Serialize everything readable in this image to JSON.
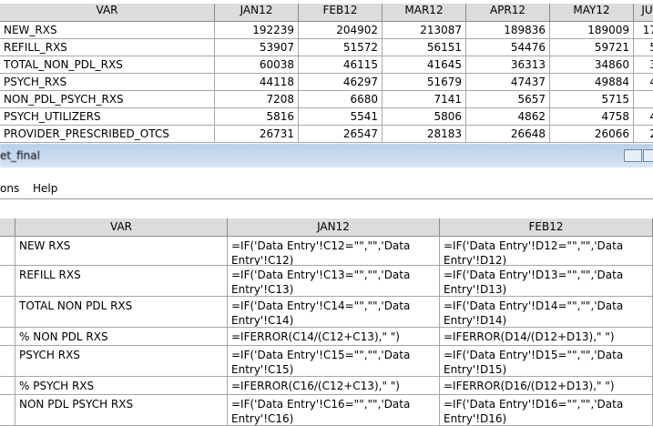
{
  "top_window": {
    "table": {
      "header": [
        "VAR",
        "JAN12",
        "FEB12",
        "MAR12",
        "APR12",
        "MAY12",
        "JU"
      ],
      "rows": [
        [
          "NEW_RXS",
          192239,
          204902,
          213087,
          189836,
          189009,
          "17"
        ],
        [
          "REFILL_RXS",
          53907,
          51572,
          56151,
          54476,
          59721,
          "5"
        ],
        [
          "TOTAL_NON_PDL_RXS",
          60038,
          46115,
          41645,
          36313,
          34860,
          "3"
        ],
        [
          "PSYCH_RXS",
          44118,
          46297,
          51679,
          47437,
          49884,
          "4"
        ],
        [
          "NON_PDL_PSYCH_RXS",
          7208,
          6680,
          7141,
          5657,
          5715,
          null
        ],
        [
          "PSYCH_UTILIZERS",
          5816,
          5541,
          5806,
          4862,
          4758,
          "4"
        ],
        [
          "PROVIDER_PRESCRIBED_OTCS",
          26731,
          26547,
          28183,
          26648,
          26066,
          "2"
        ]
      ]
    }
  },
  "bottom_window": {
    "title": "et_final",
    "menu": [
      "ons",
      "Help"
    ],
    "table": {
      "header": [
        "VAR",
        "JAN12",
        "FEB12"
      ],
      "rows": [
        [
          "NEW RXS",
          "=IF('Data Entry'!C12=\"\",\"\",'Data Entry'!C12)",
          "=IF('Data Entry'!D12=\"\",\"\",'Data Entry'!D12)"
        ],
        [
          "REFILL RXS",
          "=IF('Data Entry'!C13=\"\",\"\",'Data Entry'!C13)",
          "=IF('Data Entry'!D13=\"\",\"\",'Data Entry'!D13)"
        ],
        [
          "TOTAL NON PDL RXS",
          "=IF('Data Entry'!C14=\"\",\"\",'Data Entry'!C14)",
          "=IF('Data Entry'!D14=\"\",\"\",'Data Entry'!D14)"
        ],
        [
          "% NON PDL RXS",
          "=IFERROR(C14/(C12+C13),\" \")",
          "=IFERROR(D14/(D12+D13),\" \")"
        ],
        [
          "PSYCH RXS",
          "=IF('Data Entry'!C15=\"\",\"\",'Data Entry'!C15)",
          "=IF('Data Entry'!D15=\"\",\"\",'Data Entry'!D15)"
        ],
        [
          "% PSYCH RXS",
          "=IFERROR(C16/(C12+C13),\" \")",
          "=IFERROR(D16/(D12+D13),\" \")"
        ],
        [
          "NON PDL PSYCH RXS",
          "=IF('Data Entry'!C16=\"\",\"\",'Data Entry'!C16)",
          "=IF('Data Entry'!D16=\"\",\"\",'Data Entry'!D16)"
        ]
      ]
    }
  }
}
